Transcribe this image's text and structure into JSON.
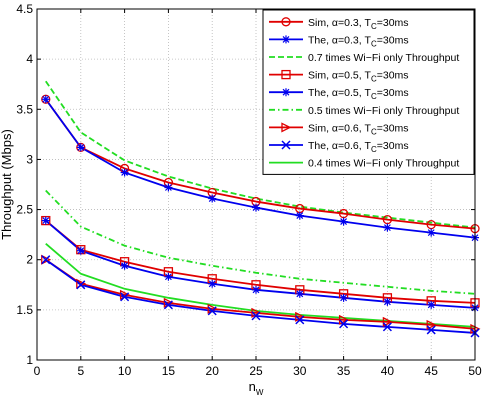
{
  "chart_data": {
    "type": "line",
    "xlabel": "n",
    "xlabel_sub": "W",
    "ylabel": "Throughput (Mbps)",
    "xlim": [
      0,
      50
    ],
    "ylim": [
      1,
      4.5
    ],
    "x_ticks": [
      0,
      5,
      10,
      15,
      20,
      25,
      30,
      35,
      40,
      45,
      50
    ],
    "y_ticks": [
      1,
      1.5,
      2,
      2.5,
      3,
      3.5,
      4,
      4.5
    ],
    "x_tick_labels": [
      "0",
      "5",
      "10",
      "15",
      "20",
      "25",
      "30",
      "35",
      "40",
      "45",
      "50"
    ],
    "y_tick_labels": [
      "1",
      "1.5",
      "2",
      "2.5",
      "3",
      "3.5",
      "4",
      "4.5"
    ],
    "grid": true,
    "legend_position": "top-right",
    "x": [
      1,
      5,
      10,
      15,
      20,
      25,
      30,
      35,
      40,
      45,
      50
    ],
    "series": [
      {
        "name": "Sim, α=0.3, T",
        "name_sub": "C",
        "name_suffix": "=30ms",
        "color": "#e00000",
        "marker": "circle",
        "dash": "solid",
        "values": [
          3.6,
          3.12,
          2.91,
          2.77,
          2.67,
          2.58,
          2.51,
          2.46,
          2.4,
          2.35,
          2.31
        ]
      },
      {
        "name": "The, α=0.3, T",
        "name_sub": "C",
        "name_suffix": "=30ms",
        "color": "#0000ee",
        "marker": "star",
        "dash": "solid",
        "values": [
          3.6,
          3.12,
          2.87,
          2.72,
          2.61,
          2.52,
          2.44,
          2.38,
          2.32,
          2.27,
          2.22
        ]
      },
      {
        "name": "0.7 times Wi−Fi only Throughput",
        "name_sub": "",
        "name_suffix": "",
        "color": "#22dd22",
        "marker": "none",
        "dash": "dashed",
        "values": [
          3.78,
          3.27,
          2.99,
          2.83,
          2.71,
          2.61,
          2.53,
          2.47,
          2.42,
          2.37,
          2.32
        ]
      },
      {
        "name": "Sim, α=0.5, T",
        "name_sub": "C",
        "name_suffix": "=30ms",
        "color": "#e00000",
        "marker": "square",
        "dash": "solid",
        "values": [
          2.39,
          2.1,
          1.98,
          1.88,
          1.81,
          1.75,
          1.7,
          1.66,
          1.62,
          1.59,
          1.57
        ]
      },
      {
        "name": "The, α=0.5, T",
        "name_sub": "C",
        "name_suffix": "=30ms",
        "color": "#0000ee",
        "marker": "star",
        "dash": "solid",
        "values": [
          2.39,
          2.09,
          1.94,
          1.83,
          1.76,
          1.7,
          1.66,
          1.62,
          1.58,
          1.55,
          1.52
        ]
      },
      {
        "name": "0.5 times Wi−Fi only Throughput",
        "name_sub": "",
        "name_suffix": "",
        "color": "#22dd22",
        "marker": "none",
        "dash": "dashdot",
        "values": [
          2.69,
          2.33,
          2.14,
          2.02,
          1.94,
          1.87,
          1.81,
          1.77,
          1.73,
          1.69,
          1.66
        ]
      },
      {
        "name": "Sim, α=0.6, T",
        "name_sub": "C",
        "name_suffix": "=30ms",
        "color": "#e00000",
        "marker": "triangle-right",
        "dash": "solid",
        "values": [
          2.0,
          1.76,
          1.65,
          1.57,
          1.51,
          1.47,
          1.43,
          1.4,
          1.38,
          1.35,
          1.31
        ]
      },
      {
        "name": "The, α=0.6, T",
        "name_sub": "C",
        "name_suffix": "=30ms",
        "color": "#0000ee",
        "marker": "x",
        "dash": "solid",
        "values": [
          2.0,
          1.75,
          1.63,
          1.55,
          1.49,
          1.44,
          1.4,
          1.36,
          1.33,
          1.3,
          1.27
        ]
      },
      {
        "name": "0.4 times Wi−Fi only Throughput",
        "name_sub": "",
        "name_suffix": "",
        "color": "#22dd22",
        "marker": "none",
        "dash": "solid",
        "values": [
          2.16,
          1.86,
          1.71,
          1.62,
          1.55,
          1.49,
          1.45,
          1.42,
          1.39,
          1.36,
          1.33
        ]
      }
    ]
  }
}
